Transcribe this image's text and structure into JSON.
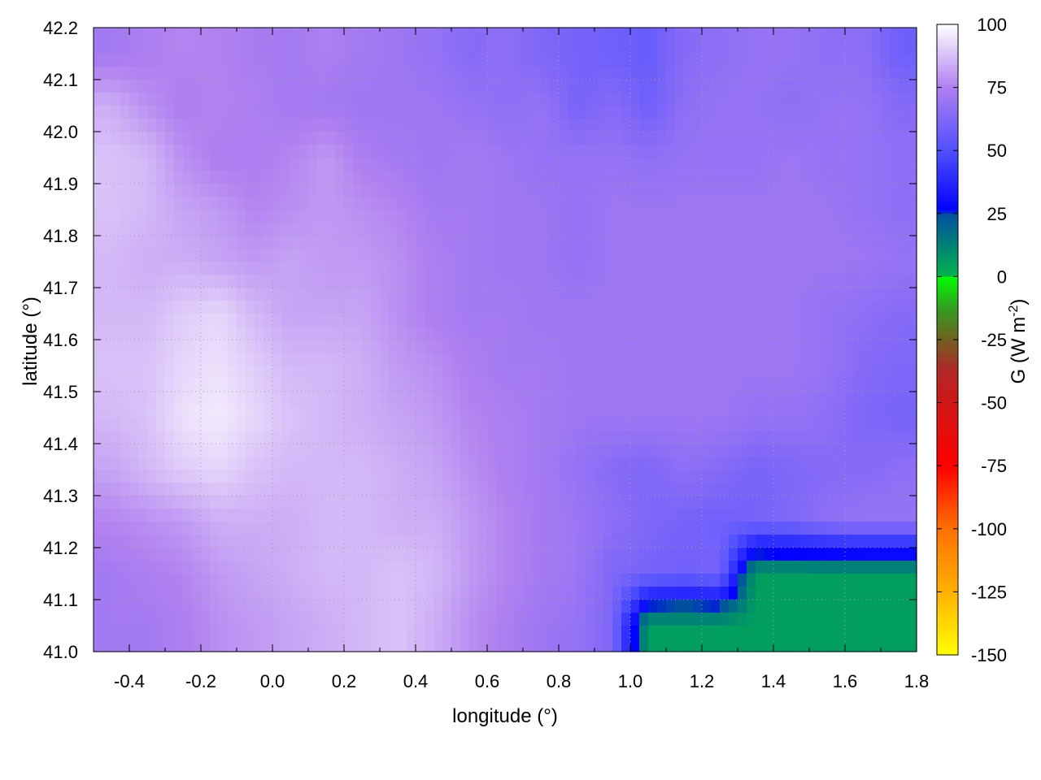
{
  "chart_data": {
    "type": "heatmap",
    "title": "",
    "xlabel": "longitude (°)",
    "ylabel": "latitude (°)",
    "colorbar_label_main": "G (W m",
    "colorbar_label_sup": "-2",
    "colorbar_label_end": ")",
    "xlim": [
      -0.5,
      1.8
    ],
    "ylim": [
      41.0,
      42.2
    ],
    "cbrange": [
      -150,
      100
    ],
    "grid": true,
    "legend": "colorbar-right",
    "x_ticks": [
      -0.4,
      -0.2,
      0.0,
      0.2,
      0.4,
      0.6,
      0.8,
      1.0,
      1.2,
      1.4,
      1.6,
      1.8
    ],
    "x_tick_labels": [
      "-0.4",
      "-0.2",
      "0.0",
      "0.2",
      "0.4",
      "0.6",
      "0.8",
      "1.0",
      "1.2",
      "1.4",
      "1.6",
      "1.8"
    ],
    "y_ticks": [
      41.0,
      41.1,
      41.2,
      41.3,
      41.4,
      41.5,
      41.6,
      41.7,
      41.8,
      41.9,
      42.0,
      42.1,
      42.2
    ],
    "y_tick_labels": [
      "41.0",
      "41.1",
      "41.2",
      "41.3",
      "41.4",
      "41.5",
      "41.6",
      "41.7",
      "41.8",
      "41.9",
      "42.0",
      "42.1",
      "42.2"
    ],
    "cb_ticks": [
      100,
      75,
      50,
      25,
      0,
      -25,
      -50,
      -75,
      -100,
      -125,
      -150
    ],
    "cb_tick_labels": [
      "100",
      "75",
      "50",
      "25",
      "0",
      "-25",
      "-50",
      "-75",
      "-100",
      "-125",
      "-150"
    ],
    "palette": [
      {
        "v": -150,
        "c": "#ffff00"
      },
      {
        "v": -125,
        "c": "#ffb000"
      },
      {
        "v": -100,
        "c": "#ff7000"
      },
      {
        "v": -75,
        "c": "#ff0000"
      },
      {
        "v": -50,
        "c": "#d01818"
      },
      {
        "v": -37,
        "c": "#b02828"
      },
      {
        "v": -25,
        "c": "#706020"
      },
      {
        "v": -12,
        "c": "#30a020"
      },
      {
        "v": 0,
        "c": "#00ff00"
      },
      {
        "v": 0.5,
        "c": "#00b050"
      },
      {
        "v": 25,
        "c": "#0050a0"
      },
      {
        "v": 26,
        "c": "#0000ff"
      },
      {
        "v": 50,
        "c": "#5050ff"
      },
      {
        "v": 75,
        "c": "#b080f0"
      },
      {
        "v": 100,
        "c": "#ffffff"
      }
    ],
    "grid_lon": [
      -0.45,
      -0.35,
      -0.25,
      -0.15,
      -0.05,
      0.05,
      0.15,
      0.25,
      0.35,
      0.45,
      0.55,
      0.65,
      0.75,
      0.85,
      0.95,
      1.05,
      1.15,
      1.25,
      1.35,
      1.45,
      1.55,
      1.65,
      1.75
    ],
    "grid_lat": [
      42.15,
      42.05,
      41.95,
      41.85,
      41.75,
      41.65,
      41.55,
      41.45,
      41.35,
      41.25,
      41.15,
      41.05
    ],
    "values": [
      [
        72,
        74,
        76,
        75,
        73,
        72,
        74,
        72,
        70,
        68,
        64,
        66,
        62,
        60,
        58,
        56,
        64,
        66,
        68,
        68,
        66,
        66,
        58
      ],
      [
        84,
        78,
        74,
        76,
        74,
        72,
        72,
        70,
        70,
        70,
        68,
        66,
        68,
        60,
        64,
        58,
        66,
        68,
        68,
        66,
        68,
        68,
        64
      ],
      [
        88,
        86,
        78,
        74,
        74,
        76,
        80,
        74,
        72,
        70,
        72,
        70,
        68,
        68,
        68,
        66,
        68,
        68,
        68,
        70,
        68,
        68,
        66
      ],
      [
        88,
        86,
        82,
        80,
        76,
        78,
        80,
        78,
        76,
        72,
        72,
        70,
        70,
        68,
        70,
        70,
        70,
        70,
        70,
        70,
        70,
        68,
        66
      ],
      [
        86,
        84,
        84,
        82,
        80,
        82,
        80,
        80,
        78,
        74,
        72,
        70,
        70,
        68,
        70,
        70,
        70,
        70,
        70,
        70,
        70,
        70,
        68
      ],
      [
        86,
        86,
        90,
        92,
        86,
        82,
        82,
        82,
        78,
        74,
        72,
        72,
        70,
        70,
        70,
        70,
        70,
        70,
        70,
        70,
        68,
        66,
        64
      ],
      [
        88,
        88,
        92,
        94,
        90,
        86,
        86,
        84,
        80,
        78,
        74,
        72,
        72,
        70,
        70,
        70,
        70,
        70,
        70,
        70,
        68,
        64,
        62
      ],
      [
        86,
        88,
        94,
        96,
        92,
        88,
        86,
        84,
        82,
        80,
        76,
        74,
        72,
        70,
        70,
        70,
        70,
        70,
        68,
        68,
        66,
        62,
        60
      ],
      [
        82,
        86,
        90,
        92,
        88,
        86,
        86,
        86,
        84,
        82,
        78,
        74,
        72,
        68,
        64,
        62,
        66,
        64,
        60,
        62,
        64,
        64,
        66
      ],
      [
        76,
        78,
        80,
        84,
        84,
        84,
        86,
        86,
        84,
        84,
        80,
        76,
        72,
        70,
        66,
        62,
        60,
        58,
        60,
        62,
        66,
        68,
        68
      ],
      [
        72,
        74,
        76,
        80,
        82,
        84,
        86,
        86,
        88,
        86,
        80,
        76,
        72,
        70,
        62,
        60,
        58,
        60,
        5,
        5,
        5,
        5,
        5
      ],
      [
        72,
        72,
        74,
        78,
        80,
        82,
        84,
        86,
        88,
        84,
        78,
        74,
        70,
        68,
        62,
        5,
        5,
        5,
        5,
        5,
        5,
        5,
        5
      ]
    ]
  }
}
